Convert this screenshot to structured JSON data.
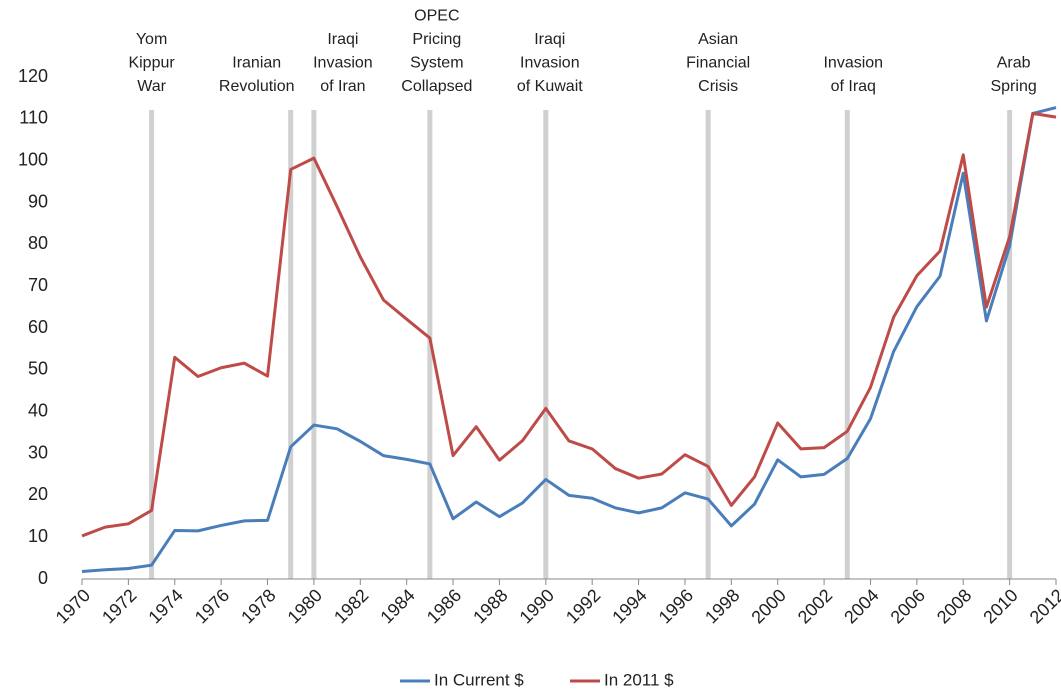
{
  "chart_data": {
    "type": "line",
    "x": [
      1970,
      1971,
      1972,
      1973,
      1974,
      1975,
      1976,
      1977,
      1978,
      1979,
      1980,
      1981,
      1982,
      1983,
      1984,
      1985,
      1986,
      1987,
      1988,
      1989,
      1990,
      1991,
      1992,
      1993,
      1994,
      1995,
      1996,
      1997,
      1998,
      1999,
      2000,
      2001,
      2002,
      2003,
      2004,
      2005,
      2006,
      2007,
      2008,
      2009,
      2010,
      2011,
      2012
    ],
    "series": [
      {
        "name": "In Current $",
        "color": "#4a7ebb",
        "values": [
          1.8,
          2.2,
          2.5,
          3.3,
          11.6,
          11.5,
          12.8,
          13.9,
          14.0,
          31.6,
          36.8,
          35.9,
          32.9,
          29.5,
          28.6,
          27.5,
          14.4,
          18.4,
          14.9,
          18.2,
          23.8,
          20.0,
          19.3,
          17.0,
          15.8,
          17.0,
          20.6,
          19.1,
          12.7,
          17.9,
          28.5,
          24.4,
          25.0,
          28.8,
          38.3,
          54.4,
          65.1,
          72.4,
          97.0,
          61.7,
          79.6,
          111.3,
          112.7
        ]
      },
      {
        "name": "In 2011 $",
        "color": "#be4b48",
        "values": [
          10.3,
          12.4,
          13.2,
          16.4,
          53.0,
          48.4,
          50.5,
          51.6,
          48.5,
          97.9,
          100.6,
          89.0,
          77.0,
          66.7,
          62.1,
          57.6,
          29.5,
          36.4,
          28.4,
          33.1,
          40.8,
          33.0,
          31.1,
          26.4,
          24.1,
          25.1,
          29.7,
          26.9,
          17.6,
          24.4,
          37.3,
          31.1,
          31.4,
          35.3,
          45.8,
          62.6,
          72.5,
          78.4,
          101.4,
          65.0,
          81.8,
          111.3,
          110.4
        ]
      }
    ],
    "xlim": [
      1970,
      2012
    ],
    "xticks": [
      1970,
      1972,
      1974,
      1976,
      1978,
      1980,
      1982,
      1984,
      1986,
      1988,
      1990,
      1992,
      1994,
      1996,
      1998,
      2000,
      2002,
      2004,
      2006,
      2008,
      2010,
      2012
    ],
    "ylim": [
      0,
      120
    ],
    "yticks": [
      0,
      10,
      20,
      30,
      40,
      50,
      60,
      70,
      80,
      90,
      100,
      110,
      120
    ],
    "annotations": [
      {
        "x": 1973,
        "label": [
          "Yom",
          "Kippur",
          "War"
        ]
      },
      {
        "x": 1979,
        "label": [
          "Iranian",
          "Revolution"
        ]
      },
      {
        "x": 1980,
        "label": [
          "Iraqi",
          "Invasion",
          "of Iran"
        ]
      },
      {
        "x": 1985,
        "label": [
          "OPEC",
          "Pricing",
          "System",
          "Collapsed"
        ]
      },
      {
        "x": 1990,
        "label": [
          "Iraqi",
          "Invasion",
          "of Kuwait"
        ]
      },
      {
        "x": 1997,
        "label": [
          "Asian",
          "Financial",
          "Crisis"
        ]
      },
      {
        "x": 2003,
        "label": [
          "Invasion",
          "of Iraq"
        ]
      },
      {
        "x": 2010,
        "label": [
          "Arab",
          "Spring"
        ]
      }
    ],
    "legend": "bottom"
  }
}
